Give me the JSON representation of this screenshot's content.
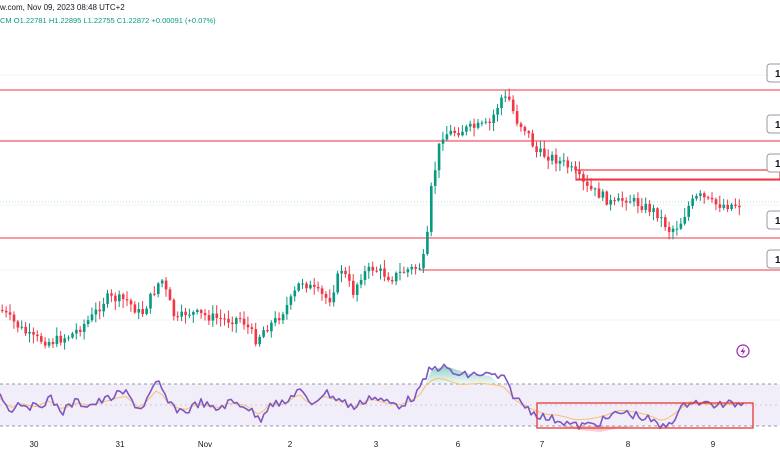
{
  "header": {
    "source_line": "w.com, Nov 09, 2023 08:48 UTC+2",
    "ohlc": {
      "symbol_tail": "CM",
      "open": "O1.22781",
      "high": "H1.22895",
      "low": "L1.22755",
      "close": "C1.22872",
      "change": "+0.00091 (+0.07%)"
    }
  },
  "colors": {
    "up": "#089981",
    "down": "#f23645",
    "level_line": "#f23645",
    "rsi_line": "#7e57c2",
    "rsi_ma": "#f5c26b",
    "rsi_band": "#ede7f6",
    "box": "#e53935",
    "text": "#131722"
  },
  "icons": {
    "replay": "lightning-bolt-icon"
  },
  "chart_data": {
    "type": "candlestick",
    "x_ticks": [
      "30",
      "31",
      "Nov",
      "2",
      "3",
      "6",
      "7",
      "8",
      "9"
    ],
    "price_axis_labels": [
      "1",
      "1",
      "1",
      "1",
      "1"
    ],
    "levels_count": 6,
    "candles_count": 190,
    "price_range": [
      1.203,
      1.238
    ],
    "rsi": {
      "range": [
        0,
        100
      ],
      "upper": 70,
      "lower": 30,
      "mid": 50
    }
  }
}
